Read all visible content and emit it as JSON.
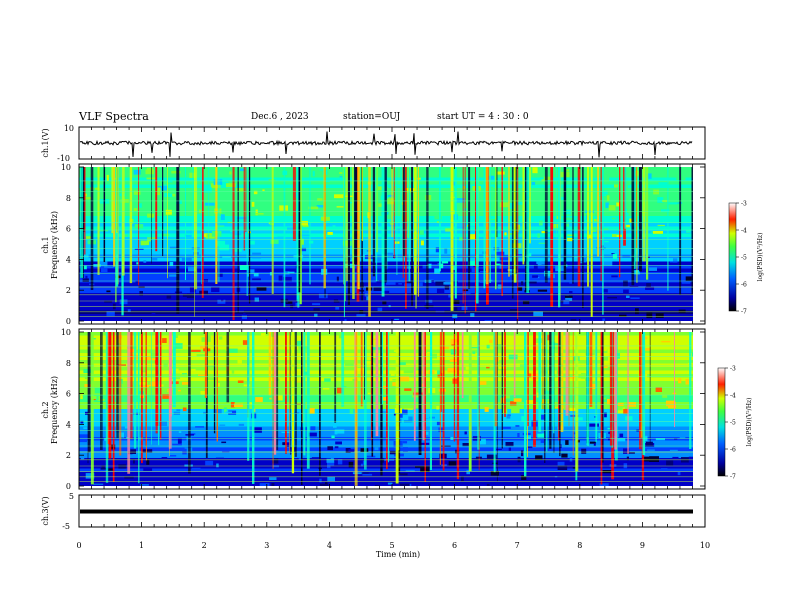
{
  "header": {
    "title": "VLF Spectra",
    "date": "Dec.6 , 2023",
    "station": "station=OUJ",
    "start": "start  UT =  4 : 30 : 0"
  },
  "chart_data": [
    {
      "type": "line",
      "panel": "ch1-waveform",
      "ylabel": "ch.1(V)",
      "ylim": [
        -10,
        10
      ],
      "yticks": [
        "10",
        "-10"
      ],
      "xlim": [
        0,
        10
      ],
      "series": [
        {
          "values_description_baseline": 0,
          "spike_times_min": [
            0.85,
            1.15,
            1.45,
            2.45,
            3.3,
            3.95,
            4.7,
            5.05,
            5.35,
            5.95,
            6.05,
            6.75,
            8.3,
            9.2
          ]
        }
      ]
    },
    {
      "type": "heatmap",
      "panel": "ch1-spectrogram",
      "ylabel": "ch.1\nFrequency (kHz)",
      "ylim": [
        0,
        10
      ],
      "yticks": [
        "0",
        "2",
        "4",
        "6",
        "8",
        "10"
      ],
      "xlim": [
        0,
        9.8
      ],
      "colorbar": {
        "label": "log(PSD)(V²/Hz)",
        "range": [
          -7,
          -3
        ],
        "ticks": [
          "-3",
          "-4",
          "-5",
          "-6",
          "-7"
        ]
      }
    },
    {
      "type": "heatmap",
      "panel": "ch2-spectrogram",
      "ylabel": "ch.2\nFrequency (kHz)",
      "ylim": [
        0,
        10
      ],
      "yticks": [
        "0",
        "2",
        "4",
        "6",
        "8",
        "10"
      ],
      "xlim": [
        0,
        9.8
      ],
      "colorbar": {
        "label": "log(PSD)(V²/Hz)",
        "range": [
          -7,
          -3
        ],
        "ticks": [
          "-3",
          "-4",
          "-5",
          "-6",
          "-7"
        ]
      }
    },
    {
      "type": "line",
      "panel": "ch3-waveform",
      "ylabel": "ch.3(V)",
      "ylim": [
        -5,
        5
      ],
      "yticks": [
        "5",
        "-5"
      ],
      "xlim": [
        0,
        10
      ],
      "series": [
        {
          "constant_value": -0.3
        }
      ]
    }
  ],
  "xaxis": {
    "label": "Time (min)",
    "ticks": [
      "0",
      "1",
      "2",
      "3",
      "4",
      "5",
      "6",
      "7",
      "8",
      "9",
      "10"
    ]
  }
}
